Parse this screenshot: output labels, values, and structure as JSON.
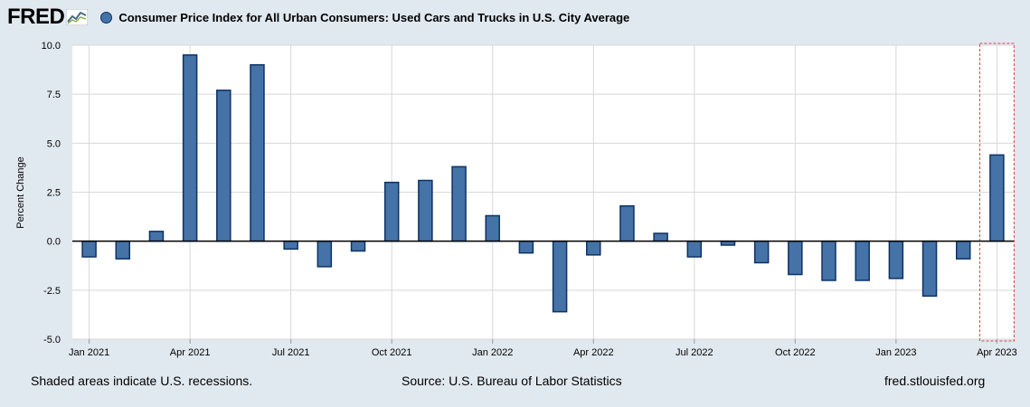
{
  "header": {
    "logo_text": "FRED",
    "logo_icon": "line-chart-icon",
    "series_title": "Consumer Price Index for All Urban Consumers: Used Cars and Trucks in U.S. City Average"
  },
  "footer": {
    "left": "Shaded areas indicate U.S. recessions.",
    "source": "Source: U.S. Bureau of Labor Statistics",
    "site": "fred.stlouisfed.org"
  },
  "colors": {
    "bar_fill": "#4572a7",
    "bar_border": "#0d3264",
    "background": "#e1e9f0",
    "plot_bg": "#ffffff",
    "highlight": "#e04040"
  },
  "chart_data": {
    "type": "bar",
    "title": "Consumer Price Index for All Urban Consumers: Used Cars and Trucks in U.S. City Average",
    "xlabel": "",
    "ylabel": "Percent Change",
    "ylim": [
      -5.0,
      10.0
    ],
    "yticks": [
      "10.0",
      "7.5",
      "5.0",
      "2.5",
      "0.0",
      "-2.5",
      "-5.0"
    ],
    "ytick_values": [
      10,
      7.5,
      5,
      2.5,
      0,
      -2.5,
      -5
    ],
    "xtick_labels": [
      "Jan 2021",
      "Apr 2021",
      "Jul 2021",
      "Oct 2021",
      "Jan 2022",
      "Apr 2022",
      "Jul 2022",
      "Oct 2022",
      "Jan 2023",
      "Apr 2023"
    ],
    "xtick_indices": [
      0,
      3,
      6,
      9,
      12,
      15,
      18,
      21,
      24,
      27
    ],
    "categories": [
      "Jan 2021",
      "Feb 2021",
      "Mar 2021",
      "Apr 2021",
      "May 2021",
      "Jun 2021",
      "Jul 2021",
      "Aug 2021",
      "Sep 2021",
      "Oct 2021",
      "Nov 2021",
      "Dec 2021",
      "Jan 2022",
      "Feb 2022",
      "Mar 2022",
      "Apr 2022",
      "May 2022",
      "Jun 2022",
      "Jul 2022",
      "Aug 2022",
      "Sep 2022",
      "Oct 2022",
      "Nov 2022",
      "Dec 2022",
      "Jan 2023",
      "Feb 2023",
      "Mar 2023",
      "Apr 2023"
    ],
    "values": [
      -0.8,
      -0.9,
      0.5,
      9.5,
      7.7,
      9.0,
      -0.4,
      -1.3,
      -0.5,
      3.0,
      3.1,
      3.8,
      1.3,
      -0.6,
      -3.6,
      -0.7,
      1.8,
      0.4,
      -0.8,
      -0.2,
      -1.1,
      -1.7,
      -2.0,
      -2.0,
      -1.9,
      -2.8,
      -0.9,
      4.4
    ],
    "highlight_index": 27,
    "grid": true,
    "legend": "top-left"
  }
}
